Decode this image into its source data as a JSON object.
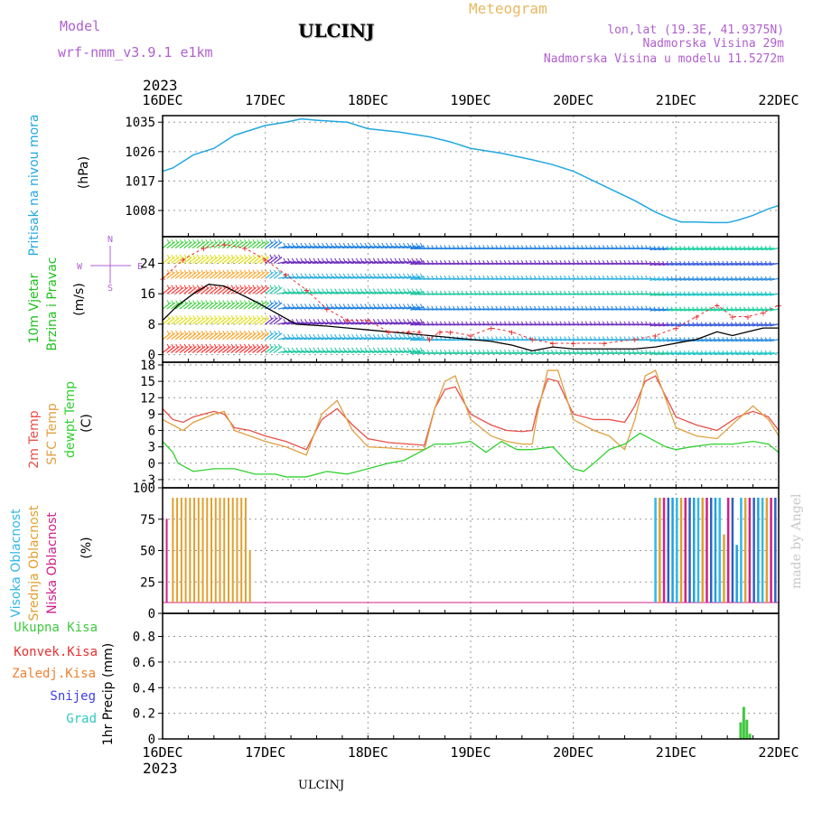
{
  "header": {
    "model_label": "Model",
    "model_name": "wrf-nmm_v3.9.1 e1km",
    "station": "ULCINJ",
    "product": "Meteogram",
    "lonlat": "lon,lat (19.3E, 41.9375N)",
    "elevation": "Nadmorska Visina 29m",
    "model_elevation": "Nadmorska Visina u modelu 11.5272m",
    "footer_station": "ULCINJ",
    "watermark": "made by Angel"
  },
  "colors": {
    "pressure": "#22a8e0",
    "temp2m": "#e8504a",
    "sfctemp": "#e0a040",
    "dewpt": "#30d030",
    "high_cloud": "#30b8e8",
    "mid_cloud": "#e0a030",
    "low_cloud": "#d0208a",
    "precip": "#40c840",
    "model_text": "#b060d0",
    "product_text": "#e8b860",
    "gust": "#e83030",
    "grad": "#30c8c0",
    "snow": "#4040e0",
    "conv": "#e83030",
    "zaledj": "#f08030"
  },
  "chart_data": [
    {
      "type": "line",
      "panel": "pressure",
      "ylabel": [
        "Pritisak na nivou mora",
        "(hPa)"
      ],
      "yticks": [
        1008,
        1017,
        1026,
        1035
      ],
      "ylim": [
        1000,
        1037
      ],
      "x_axis": {
        "year": "2023",
        "ticks": [
          "16DEC",
          "17DEC",
          "18DEC",
          "19DEC",
          "20DEC",
          "21DEC",
          "22DEC"
        ]
      },
      "series": [
        {
          "x": [
            0,
            0.1,
            0.3,
            0.5,
            0.7,
            0.9,
            1.0,
            1.2,
            1.35,
            1.5,
            1.8,
            2.0,
            2.3,
            2.6,
            2.8,
            3.0,
            3.3,
            3.6,
            3.8,
            4.0,
            4.2,
            4.4,
            4.6,
            4.8,
            4.95,
            5.05,
            5.2,
            5.35,
            5.5,
            5.6,
            5.75,
            5.9,
            6.0
          ],
          "y": [
            1020,
            1021,
            1025,
            1027,
            1031,
            1033,
            1034,
            1035,
            1036,
            1035.6,
            1035,
            1033,
            1032,
            1030.5,
            1029,
            1027,
            1025.5,
            1023.5,
            1022,
            1020,
            1017,
            1014,
            1011,
            1007.5,
            1005.5,
            1004.5,
            1004.5,
            1004.3,
            1004.3,
            1005,
            1006.5,
            1008.5,
            1009.5
          ]
        }
      ]
    },
    {
      "type": "line",
      "panel": "wind",
      "ylabel": [
        "10m Vjetar",
        "Brzina i Pravac",
        "(m/s)"
      ],
      "compass": [
        "N",
        "W",
        "E",
        "S"
      ],
      "yticks": [
        0,
        8,
        16,
        24
      ],
      "ylim": [
        -2,
        31
      ],
      "series": [
        {
          "name": "speed",
          "x": [
            0,
            0.15,
            0.3,
            0.45,
            0.6,
            0.75,
            0.9,
            1.1,
            1.3,
            1.6,
            2.0,
            2.4,
            2.8,
            3.0,
            3.2,
            3.4,
            3.6,
            3.8,
            4.0,
            4.3,
            4.6,
            4.8,
            5.0,
            5.2,
            5.4,
            5.55,
            5.7,
            5.85,
            6.0
          ],
          "y": [
            9,
            13,
            16,
            18.5,
            18,
            16,
            14,
            11,
            8,
            7.5,
            6.5,
            5.5,
            4.5,
            4,
            3.5,
            2.5,
            1,
            2,
            1.5,
            1.5,
            1.5,
            2,
            3,
            4,
            6,
            5,
            6,
            7,
            7
          ]
        },
        {
          "name": "gust",
          "x": [
            0,
            0.2,
            0.4,
            0.6,
            0.8,
            1.0,
            1.2,
            1.4,
            1.6,
            1.8,
            2.0,
            2.2,
            2.4,
            2.5,
            2.6,
            2.7,
            2.8,
            3.0,
            3.2,
            3.4,
            3.6,
            3.8,
            4.0,
            4.3,
            4.6,
            4.8,
            5.0,
            5.2,
            5.4,
            5.55,
            5.7,
            5.85,
            6.0
          ],
          "y": [
            20,
            25,
            28,
            29,
            28,
            25,
            21,
            17,
            12,
            9,
            9,
            6,
            6,
            6,
            4,
            6,
            6,
            5,
            7,
            6,
            4,
            3,
            3,
            3,
            4,
            5,
            7,
            10,
            13,
            10,
            10,
            11,
            13
          ]
        }
      ]
    },
    {
      "type": "line",
      "panel": "temperature",
      "ylabel": [
        "2m Temp",
        "SFC Temp",
        "dewpt Temp",
        "(C)"
      ],
      "yticks": [
        -3,
        0,
        3,
        6,
        9,
        12,
        15,
        18
      ],
      "ylim": [
        -4.5,
        18.5
      ],
      "series": [
        {
          "name": "2m Temp",
          "x": [
            0,
            0.1,
            0.2,
            0.3,
            0.5,
            0.6,
            0.7,
            0.85,
            1.0,
            1.2,
            1.4,
            1.55,
            1.7,
            1.85,
            2.0,
            2.2,
            2.4,
            2.55,
            2.65,
            2.75,
            2.85,
            3.0,
            3.2,
            3.35,
            3.5,
            3.6,
            3.65,
            3.75,
            3.85,
            4.0,
            4.2,
            4.35,
            4.5,
            4.6,
            4.7,
            4.8,
            5.0,
            5.2,
            5.4,
            5.6,
            5.75,
            5.9,
            6.0
          ],
          "y": [
            10,
            8,
            7.5,
            8.5,
            9.5,
            9,
            6.5,
            6,
            5,
            4,
            2.5,
            8,
            10,
            7,
            4.5,
            3.8,
            3.5,
            3.3,
            10,
            13.5,
            14,
            9,
            7,
            6,
            5.8,
            6,
            10,
            15.5,
            15,
            9,
            8,
            8,
            7.5,
            10.5,
            15,
            16,
            8.5,
            7,
            6,
            8.5,
            9.5,
            8.5,
            6
          ]
        },
        {
          "name": "SFC Temp",
          "x": [
            0,
            0.1,
            0.2,
            0.3,
            0.5,
            0.6,
            0.7,
            0.85,
            1.0,
            1.2,
            1.4,
            1.55,
            1.7,
            1.85,
            2.0,
            2.2,
            2.4,
            2.55,
            2.65,
            2.75,
            2.85,
            3.0,
            3.2,
            3.35,
            3.5,
            3.6,
            3.65,
            3.75,
            3.85,
            4.0,
            4.2,
            4.35,
            4.5,
            4.6,
            4.7,
            4.8,
            5.0,
            5.2,
            5.4,
            5.6,
            5.75,
            5.9,
            6.0
          ],
          "y": [
            8,
            7,
            6,
            7.5,
            9,
            9.5,
            6,
            5,
            4,
            3,
            1.5,
            9,
            11.5,
            6,
            3,
            2.8,
            2.5,
            2.5,
            10,
            15,
            16,
            8,
            5,
            4,
            3.5,
            3.5,
            9,
            17,
            17,
            8,
            6,
            5,
            2.5,
            8,
            16,
            17,
            6.5,
            5,
            4.5,
            8,
            10.5,
            8,
            5
          ]
        },
        {
          "name": "dewpt Temp",
          "x": [
            0,
            0.1,
            0.15,
            0.3,
            0.5,
            0.7,
            0.9,
            1.1,
            1.2,
            1.4,
            1.6,
            1.8,
            2.0,
            2.2,
            2.35,
            2.5,
            2.65,
            2.8,
            3.0,
            3.15,
            3.3,
            3.45,
            3.6,
            3.8,
            4.0,
            4.1,
            4.2,
            4.35,
            4.5,
            4.65,
            4.75,
            4.9,
            5.0,
            5.15,
            5.35,
            5.55,
            5.75,
            5.9,
            6.0
          ],
          "y": [
            4,
            2,
            0,
            -1.5,
            -1,
            -1,
            -2,
            -2,
            -2.5,
            -2.5,
            -1.5,
            -2,
            -1,
            0,
            0.5,
            2,
            3.5,
            3.5,
            4,
            2,
            4,
            2.5,
            2.5,
            3,
            -1,
            -1.5,
            0,
            2.5,
            3.5,
            5.5,
            4.5,
            3,
            2.5,
            3,
            3.5,
            3.5,
            4,
            3.5,
            2
          ]
        }
      ]
    },
    {
      "type": "bar",
      "panel": "cloud",
      "ylabel": [
        "Visoka Oblacnost",
        "Srednja Oblacnost",
        "Niska Oblacnost",
        "(%)"
      ],
      "yticks": [
        0,
        25,
        50,
        75,
        100
      ],
      "ylim": [
        0,
        100
      ],
      "series": [
        {
          "name": "Srednja Oblacnost",
          "x_range": [
            0.1,
            0.85
          ],
          "step": 0.0417,
          "values": [
            100,
            100,
            100,
            100,
            100,
            100,
            100,
            100,
            100,
            100,
            100,
            100,
            100,
            100,
            100,
            100,
            100,
            100,
            50
          ]
        },
        {
          "name": "Niska Oblacnost",
          "x": [
            0.04
          ],
          "values": [
            80
          ]
        },
        {
          "name": "mixed cloud",
          "x_range": [
            4.8,
            6.0
          ],
          "step": 0.0417,
          "values": [
            100,
            100,
            100,
            100,
            100,
            100,
            100,
            100,
            100,
            100,
            100,
            100,
            100,
            100,
            100,
            100,
            65,
            100,
            100,
            55,
            100,
            100,
            100,
            100,
            100,
            100,
            100,
            100,
            100
          ]
        }
      ]
    },
    {
      "type": "bar",
      "panel": "precip",
      "ylabel": [
        "1hr Precip (mm)"
      ],
      "legend": [
        "Ukupna Kisa",
        "Konvek.Kisa",
        "Zaledj.Kisa",
        "Snijeg",
        "Grad"
      ],
      "yticks": [
        0,
        0.2,
        0.4,
        0.6,
        0.8
      ],
      "ylim": [
        0,
        0.98
      ],
      "series": [
        {
          "name": "Ukupna Kisa",
          "x": [
            5.63,
            5.66,
            5.69,
            5.72
          ],
          "values": [
            0.13,
            0.25,
            0.15,
            0.04
          ]
        }
      ]
    }
  ]
}
